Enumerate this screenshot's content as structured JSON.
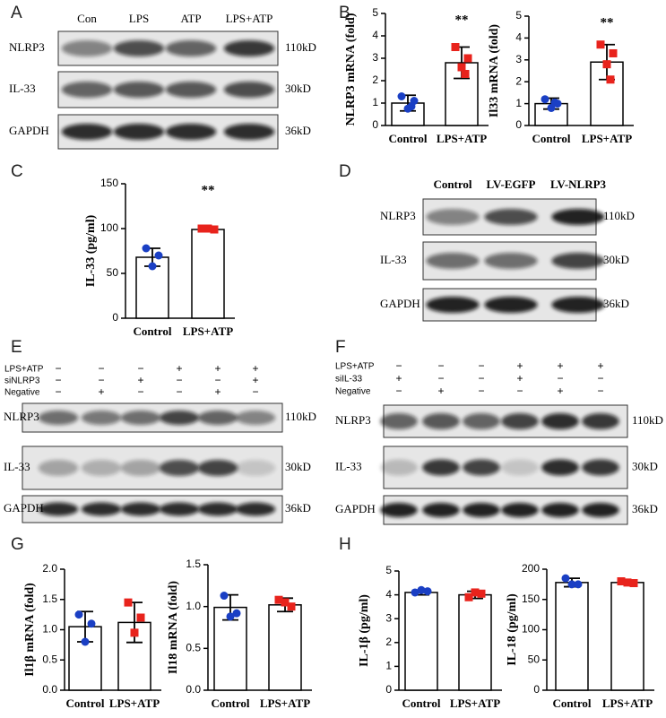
{
  "panel_labels": [
    "A",
    "B",
    "C",
    "D",
    "E",
    "F",
    "G",
    "H"
  ],
  "blots": [
    {
      "lanes": [
        "Con",
        "LPS",
        "ATP",
        "LPS+ATP"
      ],
      "rows": [
        {
          "protein": "NLRP3",
          "size": "110kD"
        },
        {
          "protein": "IL-33",
          "size": "30kD"
        },
        {
          "protein": "GAPDH",
          "size": "36kD"
        }
      ]
    },
    {
      "lanes": [
        "Control",
        "LV-EGFP",
        "LV-NLRP3"
      ],
      "rows": [
        {
          "protein": "NLRP3",
          "size": "110kD"
        },
        {
          "protein": "IL-33",
          "size": "30kD"
        },
        {
          "protein": "GAPDH",
          "size": "36kD"
        }
      ]
    },
    {
      "treatments": [
        {
          "name": "LPS+ATP",
          "marks": [
            "−",
            "−",
            "−",
            "+",
            "+",
            "+"
          ]
        },
        {
          "name": "siNLRP3",
          "marks": [
            "−",
            "−",
            "+",
            "−",
            "−",
            "+"
          ]
        },
        {
          "name": "Negative",
          "marks": [
            "−",
            "+",
            "−",
            "−",
            "+",
            "−"
          ]
        }
      ],
      "rows": [
        {
          "protein": "NLRP3",
          "size": "110kD"
        },
        {
          "protein": "IL-33",
          "size": "30kD"
        },
        {
          "protein": "GAPDH",
          "size": "36kD"
        }
      ]
    },
    {
      "treatments": [
        {
          "name": "LPS+ATP",
          "marks": [
            "−",
            "−",
            "−",
            "+",
            "+",
            "+"
          ]
        },
        {
          "name": "siIL-33",
          "marks": [
            "+",
            "−",
            "−",
            "+",
            "−",
            "−"
          ]
        },
        {
          "name": "Negative",
          "marks": [
            "−",
            "+",
            "−",
            "−",
            "+",
            "−"
          ]
        }
      ],
      "rows": [
        {
          "protein": "NLRP3",
          "size": "110kD"
        },
        {
          "protein": "IL-33",
          "size": "30kD"
        },
        {
          "protein": "GAPDH",
          "size": "36kD"
        }
      ]
    }
  ],
  "chart_data": [
    {
      "type": "bar",
      "ylabel": "NLRP3 mRNA (fold)",
      "categories": [
        "Control",
        "LPS+ATP"
      ],
      "values": [
        1.0,
        2.8
      ],
      "errors": [
        0.35,
        0.7
      ],
      "points": [
        [
          1.3,
          1.1,
          0.75,
          0.85
        ],
        [
          3.5,
          3.0,
          2.6,
          2.3
        ]
      ],
      "point_colors": [
        "#1a3fc4",
        "#e8231c"
      ],
      "ylim": [
        0,
        5
      ],
      "yticks": [
        0,
        1,
        2,
        3,
        4,
        5
      ],
      "annotation": "**"
    },
    {
      "type": "bar",
      "ylabel": "Il33 mRNA (fold)",
      "categories": [
        "Control",
        "LPS+ATP"
      ],
      "values": [
        1.0,
        2.9
      ],
      "errors": [
        0.25,
        0.8
      ],
      "points": [
        [
          1.2,
          1.0,
          0.8,
          1.05
        ],
        [
          3.7,
          3.3,
          2.8,
          2.1
        ]
      ],
      "point_colors": [
        "#1a3fc4",
        "#e8231c"
      ],
      "ylim": [
        0,
        5
      ],
      "yticks": [
        0,
        1,
        2,
        3,
        4,
        5
      ],
      "annotation": "**"
    },
    {
      "type": "bar",
      "ylabel": "IL-33 (pg/ml)",
      "categories": [
        "Control",
        "LPS+ATP"
      ],
      "values": [
        68,
        99
      ],
      "errors": [
        10,
        2
      ],
      "points": [
        [
          78,
          70,
          58
        ],
        [
          100,
          99,
          100
        ]
      ],
      "point_colors": [
        "#1a3fc4",
        "#e8231c"
      ],
      "ylim": [
        0,
        150
      ],
      "yticks": [
        0,
        50,
        100,
        150
      ],
      "annotation": "**"
    },
    {
      "type": "bar",
      "ylabel": "Il1β mRNA (fold)",
      "categories": [
        "Control",
        "LPS+ATP"
      ],
      "values": [
        1.05,
        1.12
      ],
      "errors": [
        0.25,
        0.33
      ],
      "points": [
        [
          1.25,
          1.1,
          0.8
        ],
        [
          1.45,
          1.2,
          0.95
        ]
      ],
      "point_colors": [
        "#1a3fc4",
        "#e8231c"
      ],
      "ylim": [
        0,
        2
      ],
      "yticks": [
        {
          "value": 0,
          "label": "0.0"
        },
        0.5,
        {
          "value": 1,
          "label": "1.0"
        },
        1.5,
        {
          "value": 2,
          "label": "2.0"
        }
      ]
    },
    {
      "type": "bar",
      "ylabel": "Il18 mRNA (fold)",
      "categories": [
        "Control",
        "LPS+ATP"
      ],
      "values": [
        0.99,
        1.02
      ],
      "errors": [
        0.15,
        0.08
      ],
      "points": [
        [
          1.13,
          0.92,
          0.88
        ],
        [
          1.08,
          1.0,
          1.05
        ]
      ],
      "point_colors": [
        "#1a3fc4",
        "#e8231c"
      ],
      "ylim": [
        0,
        1.5
      ],
      "yticks": [
        {
          "value": 0,
          "label": "0.0"
        },
        0.5,
        {
          "value": 1,
          "label": "1.0"
        },
        1.5
      ]
    },
    {
      "type": "bar",
      "ylabel": "IL-1β (pg/ml)",
      "categories": [
        "Control",
        "LPS+ATP"
      ],
      "values": [
        4.1,
        4.0
      ],
      "errors": [
        0.1,
        0.15
      ],
      "points": [
        [
          4.1,
          4.15,
          4.2
        ],
        [
          3.9,
          4.05,
          4.1
        ]
      ],
      "point_colors": [
        "#1a3fc4",
        "#e8231c"
      ],
      "ylim": [
        0,
        5
      ],
      "yticks": [
        0,
        1,
        2,
        3,
        4,
        5
      ]
    },
    {
      "type": "bar",
      "ylabel": "IL-18 (pg/ml)",
      "categories": [
        "Control",
        "LPS+ATP"
      ],
      "values": [
        178,
        178
      ],
      "errors": [
        7,
        3
      ],
      "points": [
        [
          185,
          175,
          175
        ],
        [
          180,
          177,
          178
        ]
      ],
      "point_colors": [
        "#1a3fc4",
        "#e8231c"
      ],
      "ylim": [
        0,
        200
      ],
      "yticks": [
        0,
        50,
        100,
        150,
        200
      ]
    }
  ]
}
